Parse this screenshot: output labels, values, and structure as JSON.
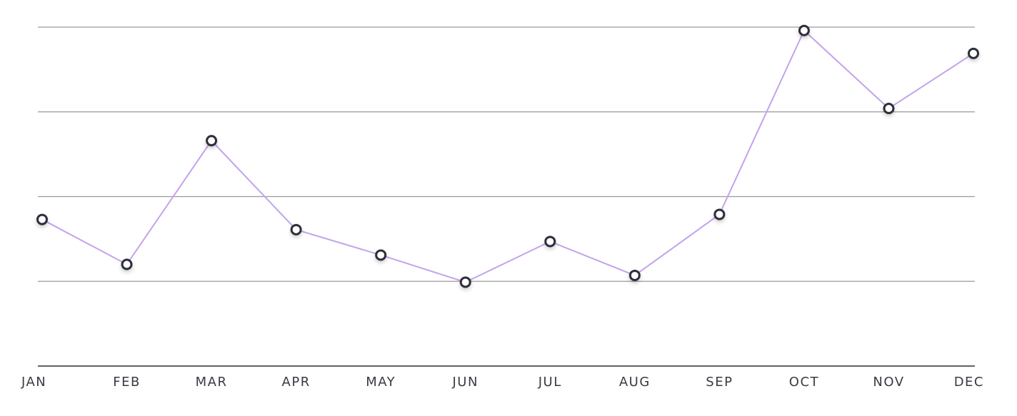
{
  "chart_data": {
    "type": "line",
    "categories": [
      "JAN",
      "FEB",
      "MAR",
      "APR",
      "MAY",
      "JUN",
      "JUL",
      "AUG",
      "SEP",
      "OCT",
      "NOV",
      "DEC"
    ],
    "values": [
      1.73,
      1.2,
      2.66,
      1.61,
      1.31,
      0.99,
      1.47,
      1.07,
      1.79,
      3.96,
      3.04,
      3.69
    ],
    "color": "#c3a3ec",
    "ylim": [
      0,
      4
    ],
    "yticks": [
      1,
      2,
      3,
      4
    ],
    "grid": true
  }
}
